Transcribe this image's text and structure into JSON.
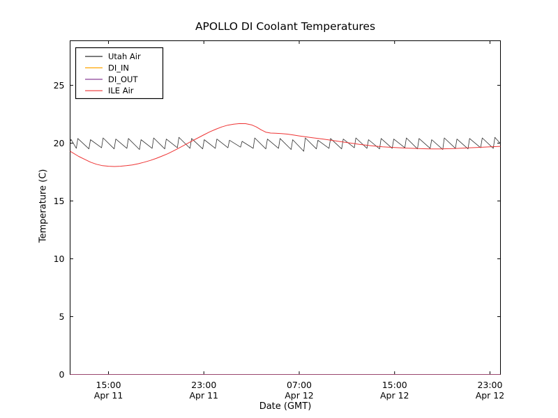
{
  "chart_data": {
    "type": "line",
    "title": "APOLLO DI Coolant Temperatures",
    "xlabel": "Date (GMT)",
    "ylabel": "Temperature (C)",
    "x_unit_note": "hours since Apr 11 00:00 GMT",
    "xlim": [
      11.78,
      47.88
    ],
    "ylim": [
      0,
      28.85
    ],
    "grid": false,
    "legend_position": "upper left",
    "axis_color": "#000000",
    "background_color": "#ffffff",
    "x_ticks": [
      {
        "pos": 15,
        "time": "15:00",
        "date": "Apr 11"
      },
      {
        "pos": 23,
        "time": "23:00",
        "date": "Apr 11"
      },
      {
        "pos": 31,
        "time": "07:00",
        "date": "Apr 12"
      },
      {
        "pos": 39,
        "time": "15:00",
        "date": "Apr 12"
      },
      {
        "pos": 47,
        "time": "23:00",
        "date": "Apr 12"
      }
    ],
    "y_ticks": [
      0,
      5,
      10,
      15,
      20,
      25
    ],
    "series": [
      {
        "name": "Utah Air",
        "color": "#2e2e2e",
        "width": 0.8,
        "alpha": 1,
        "points": [
          [
            11.78,
            20.1
          ],
          [
            11.86,
            20.32
          ],
          [
            12.3,
            19.55
          ],
          [
            12.43,
            20.4
          ],
          [
            13.36,
            19.5
          ],
          [
            13.49,
            20.3
          ],
          [
            14.42,
            19.6
          ],
          [
            14.55,
            20.45
          ],
          [
            15.48,
            19.5
          ],
          [
            15.61,
            20.35
          ],
          [
            16.54,
            19.55
          ],
          [
            16.67,
            20.4
          ],
          [
            17.6,
            19.45
          ],
          [
            17.73,
            20.3
          ],
          [
            18.66,
            19.55
          ],
          [
            18.79,
            20.45
          ],
          [
            19.72,
            19.5
          ],
          [
            19.85,
            20.35
          ],
          [
            20.78,
            19.6
          ],
          [
            20.91,
            20.5
          ],
          [
            21.84,
            19.55
          ],
          [
            21.97,
            20.4
          ],
          [
            22.9,
            19.5
          ],
          [
            23.03,
            20.3
          ],
          [
            23.96,
            19.55
          ],
          [
            24.09,
            20.35
          ],
          [
            25.02,
            19.6
          ],
          [
            25.15,
            20.25
          ],
          [
            26.08,
            19.65
          ],
          [
            26.21,
            20.15
          ],
          [
            27.14,
            19.55
          ],
          [
            27.27,
            20.45
          ],
          [
            28.2,
            19.5
          ],
          [
            28.33,
            20.35
          ],
          [
            29.26,
            19.55
          ],
          [
            29.39,
            20.4
          ],
          [
            30.32,
            19.45
          ],
          [
            30.45,
            20.3
          ],
          [
            31.38,
            19.3
          ],
          [
            31.51,
            20.45
          ],
          [
            32.44,
            19.5
          ],
          [
            32.57,
            20.25
          ],
          [
            33.5,
            19.55
          ],
          [
            33.63,
            20.4
          ],
          [
            34.56,
            19.5
          ],
          [
            34.69,
            20.35
          ],
          [
            35.62,
            19.6
          ],
          [
            35.75,
            20.45
          ],
          [
            36.68,
            19.55
          ],
          [
            36.81,
            20.3
          ],
          [
            37.74,
            19.5
          ],
          [
            37.87,
            20.4
          ],
          [
            38.8,
            19.55
          ],
          [
            38.93,
            20.35
          ],
          [
            39.86,
            19.6
          ],
          [
            39.99,
            20.45
          ],
          [
            40.92,
            19.5
          ],
          [
            41.05,
            20.4
          ],
          [
            41.98,
            19.55
          ],
          [
            42.11,
            20.3
          ],
          [
            43.04,
            19.45
          ],
          [
            43.17,
            20.45
          ],
          [
            44.1,
            19.55
          ],
          [
            44.23,
            20.35
          ],
          [
            45.16,
            19.5
          ],
          [
            45.29,
            20.4
          ],
          [
            46.22,
            19.6
          ],
          [
            46.35,
            20.45
          ],
          [
            47.28,
            19.55
          ],
          [
            47.41,
            20.5
          ],
          [
            47.88,
            19.95
          ]
        ]
      },
      {
        "name": "DI_IN",
        "color": "#ffa500",
        "width": 1,
        "alpha": 1,
        "points": [
          [
            11.78,
            0
          ],
          [
            47.88,
            0
          ]
        ]
      },
      {
        "name": "DI_OUT",
        "color": "#7d2a8c",
        "width": 1,
        "alpha": 0.78,
        "points": [
          [
            11.78,
            0
          ],
          [
            47.88,
            0
          ]
        ]
      },
      {
        "name": "ILE Air",
        "color": "#ee3333",
        "width": 1,
        "alpha": 1,
        "points": [
          [
            11.78,
            19.3
          ],
          [
            12.5,
            18.85
          ],
          [
            13.0,
            18.6
          ],
          [
            13.5,
            18.35
          ],
          [
            14.0,
            18.17
          ],
          [
            14.5,
            18.05
          ],
          [
            15.0,
            18.0
          ],
          [
            15.5,
            17.98
          ],
          [
            16.0,
            18.0
          ],
          [
            16.5,
            18.05
          ],
          [
            17.0,
            18.12
          ],
          [
            17.5,
            18.22
          ],
          [
            18.0,
            18.35
          ],
          [
            18.5,
            18.5
          ],
          [
            19.0,
            18.68
          ],
          [
            19.5,
            18.88
          ],
          [
            20.0,
            19.1
          ],
          [
            20.5,
            19.35
          ],
          [
            21.0,
            19.62
          ],
          [
            21.5,
            19.9
          ],
          [
            22.0,
            20.18
          ],
          [
            22.5,
            20.45
          ],
          [
            23.0,
            20.72
          ],
          [
            23.5,
            20.98
          ],
          [
            24.0,
            21.2
          ],
          [
            24.5,
            21.4
          ],
          [
            25.0,
            21.55
          ],
          [
            25.5,
            21.64
          ],
          [
            26.0,
            21.69
          ],
          [
            26.5,
            21.68
          ],
          [
            27.0,
            21.58
          ],
          [
            27.4,
            21.4
          ],
          [
            27.8,
            21.15
          ],
          [
            28.2,
            20.95
          ],
          [
            28.6,
            20.87
          ],
          [
            29.0,
            20.85
          ],
          [
            29.5,
            20.83
          ],
          [
            30.0,
            20.78
          ],
          [
            30.5,
            20.7
          ],
          [
            31.0,
            20.62
          ],
          [
            31.5,
            20.55
          ],
          [
            32.0,
            20.48
          ],
          [
            33.0,
            20.35
          ],
          [
            34.0,
            20.2
          ],
          [
            35.0,
            20.05
          ],
          [
            36.0,
            19.9
          ],
          [
            37.0,
            19.78
          ],
          [
            38.0,
            19.68
          ],
          [
            39.0,
            19.62
          ],
          [
            40.0,
            19.57
          ],
          [
            41.0,
            19.53
          ],
          [
            42.0,
            19.5
          ],
          [
            43.0,
            19.5
          ],
          [
            44.0,
            19.53
          ],
          [
            45.0,
            19.58
          ],
          [
            46.0,
            19.63
          ],
          [
            47.0,
            19.68
          ],
          [
            47.88,
            19.72
          ]
        ]
      }
    ]
  }
}
